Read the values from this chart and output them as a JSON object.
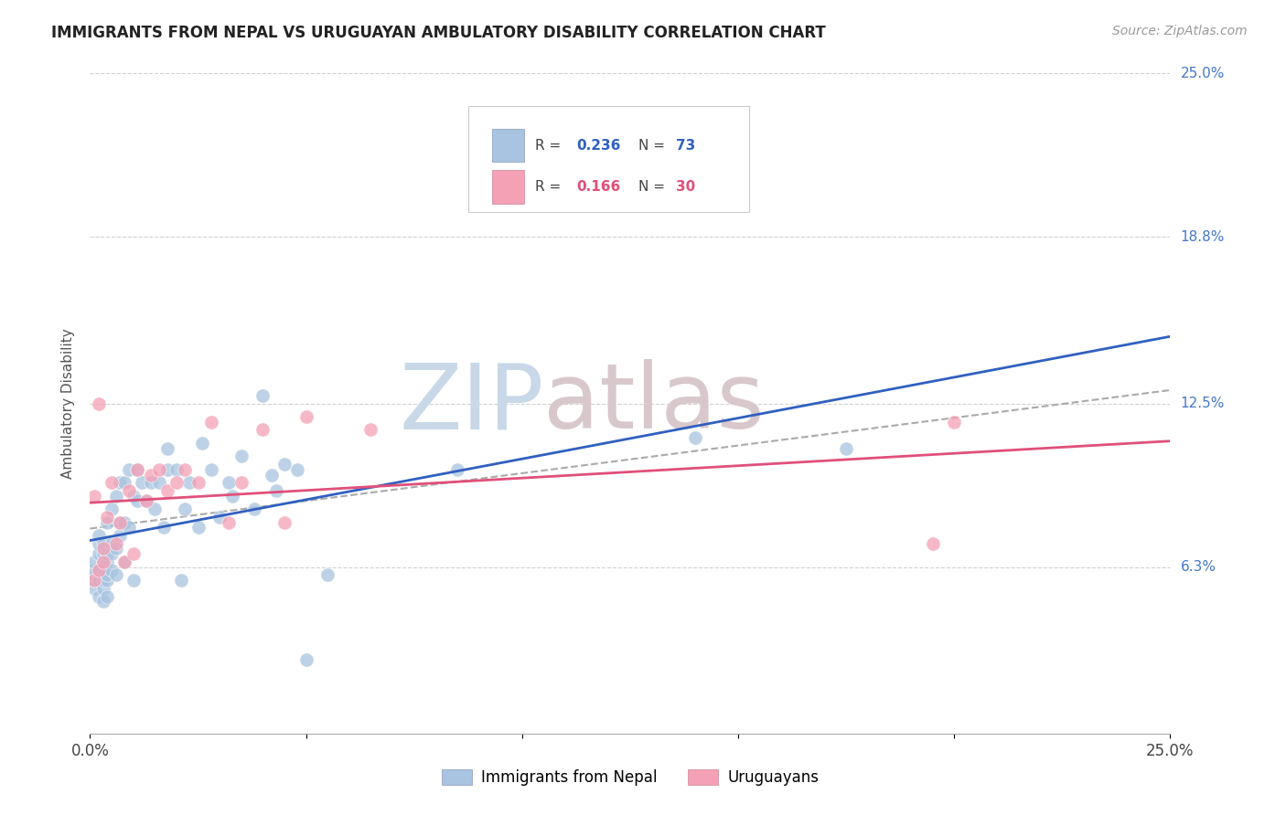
{
  "title": "IMMIGRANTS FROM NEPAL VS URUGUAYAN AMBULATORY DISABILITY CORRELATION CHART",
  "source": "Source: ZipAtlas.com",
  "ylabel": "Ambulatory Disability",
  "xlim": [
    0,
    0.25
  ],
  "ylim": [
    0,
    0.25
  ],
  "xtick_positions": [
    0.0,
    0.05,
    0.1,
    0.15,
    0.2,
    0.25
  ],
  "xticklabels": [
    "0.0%",
    "",
    "",
    "",
    "",
    "25.0%"
  ],
  "ytick_labels_right": [
    "25.0%",
    "18.8%",
    "12.5%",
    "6.3%"
  ],
  "ytick_vals_right": [
    0.25,
    0.188,
    0.125,
    0.063
  ],
  "nepal_R": 0.236,
  "nepal_N": 73,
  "uruguay_R": 0.166,
  "uruguay_N": 30,
  "nepal_color": "#a8c4e0",
  "uruguay_color": "#f4a0b5",
  "nepal_line_color": "#3060c0",
  "uruguay_line_color": "#e0507a",
  "combined_line_color": "#aaaaaa",
  "nepal_points_x": [
    0.001,
    0.001,
    0.001,
    0.001,
    0.001,
    0.002,
    0.002,
    0.002,
    0.002,
    0.002,
    0.002,
    0.003,
    0.003,
    0.003,
    0.003,
    0.003,
    0.003,
    0.003,
    0.004,
    0.004,
    0.004,
    0.004,
    0.004,
    0.004,
    0.005,
    0.005,
    0.005,
    0.005,
    0.006,
    0.006,
    0.006,
    0.007,
    0.007,
    0.007,
    0.008,
    0.008,
    0.008,
    0.009,
    0.009,
    0.01,
    0.01,
    0.011,
    0.011,
    0.012,
    0.013,
    0.014,
    0.015,
    0.016,
    0.017,
    0.018,
    0.018,
    0.02,
    0.021,
    0.022,
    0.023,
    0.025,
    0.026,
    0.028,
    0.03,
    0.032,
    0.033,
    0.035,
    0.038,
    0.04,
    0.042,
    0.043,
    0.045,
    0.048,
    0.05,
    0.055,
    0.085,
    0.14,
    0.175
  ],
  "nepal_points_y": [
    0.055,
    0.058,
    0.06,
    0.062,
    0.065,
    0.052,
    0.058,
    0.062,
    0.068,
    0.072,
    0.075,
    0.05,
    0.055,
    0.058,
    0.06,
    0.065,
    0.068,
    0.072,
    0.052,
    0.058,
    0.06,
    0.065,
    0.068,
    0.08,
    0.062,
    0.068,
    0.072,
    0.085,
    0.06,
    0.07,
    0.09,
    0.075,
    0.08,
    0.095,
    0.065,
    0.08,
    0.095,
    0.078,
    0.1,
    0.058,
    0.09,
    0.088,
    0.1,
    0.095,
    0.088,
    0.095,
    0.085,
    0.095,
    0.078,
    0.1,
    0.108,
    0.1,
    0.058,
    0.085,
    0.095,
    0.078,
    0.11,
    0.1,
    0.082,
    0.095,
    0.09,
    0.105,
    0.085,
    0.128,
    0.098,
    0.092,
    0.102,
    0.1,
    0.028,
    0.06,
    0.1,
    0.112,
    0.108
  ],
  "uruguay_points_x": [
    0.001,
    0.001,
    0.002,
    0.002,
    0.003,
    0.003,
    0.004,
    0.005,
    0.006,
    0.007,
    0.008,
    0.009,
    0.01,
    0.011,
    0.013,
    0.014,
    0.016,
    0.018,
    0.02,
    0.022,
    0.025,
    0.028,
    0.032,
    0.035,
    0.04,
    0.045,
    0.05,
    0.065,
    0.195,
    0.2
  ],
  "uruguay_points_y": [
    0.058,
    0.09,
    0.062,
    0.125,
    0.065,
    0.07,
    0.082,
    0.095,
    0.072,
    0.08,
    0.065,
    0.092,
    0.068,
    0.1,
    0.088,
    0.098,
    0.1,
    0.092,
    0.095,
    0.1,
    0.095,
    0.118,
    0.08,
    0.095,
    0.115,
    0.08,
    0.12,
    0.115,
    0.072,
    0.118
  ],
  "watermark_zip_color": "#c8d8e8",
  "watermark_atlas_color": "#d8c8cc",
  "background_color": "#ffffff"
}
